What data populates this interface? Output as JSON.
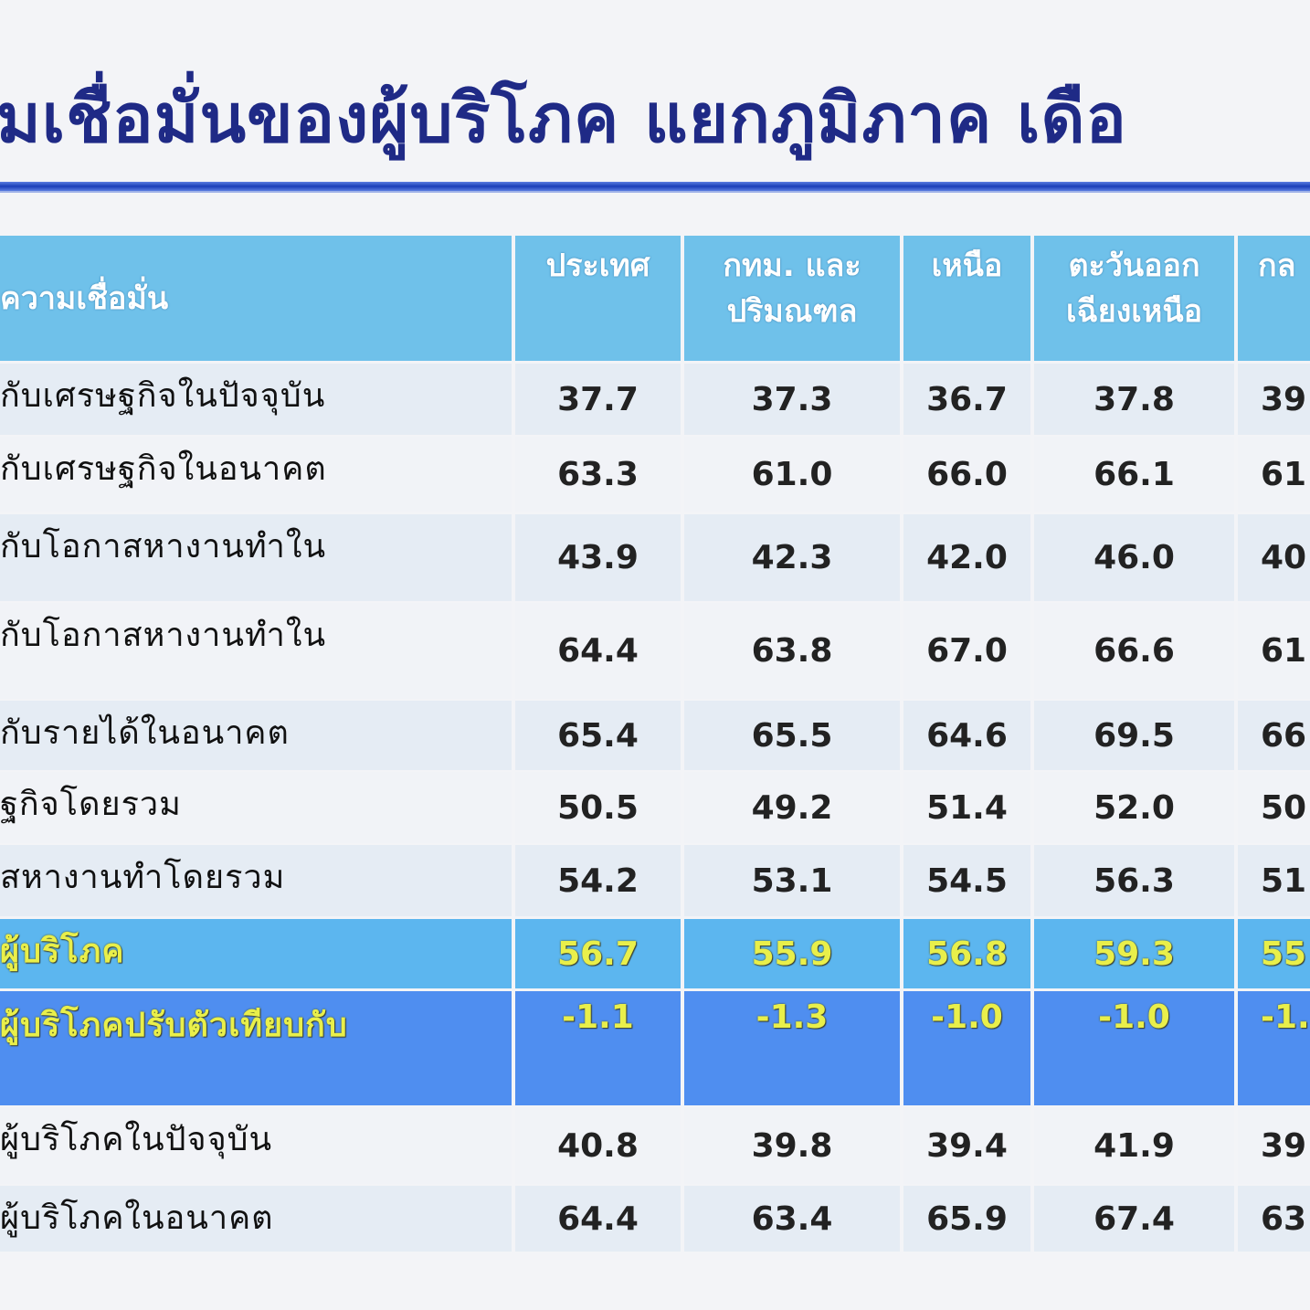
{
  "title": "มเชื่อมั่นของผู้บริโภค แยกภูมิภาค เดือ",
  "colors": {
    "title": "#1f2a86",
    "header_bg": "#6fc1ea",
    "highlight_row_bg": "#5cb6ef",
    "change_row_bg": "#4f8ef0",
    "highlight_text": "#e9ef4a"
  },
  "table": {
    "headers": [
      "ความเชื่อมั่น",
      "ประเทศ",
      "กทม. และ\nปริมณฑล",
      "เหนือ",
      "ตะวันออก\nเฉียงเหนือ",
      "กล"
    ],
    "rows": [
      {
        "label": "กับเศรษฐกิจในปัจจุบัน",
        "values": [
          "37.7",
          "37.3",
          "36.7",
          "37.8",
          "39"
        ]
      },
      {
        "label": "กับเศรษฐกิจในอนาคต",
        "values": [
          "63.3",
          "61.0",
          "66.0",
          "66.1",
          "61"
        ]
      },
      {
        "label": "กับโอกาสหางานทำใน",
        "values": [
          "43.9",
          "42.3",
          "42.0",
          "46.0",
          "40"
        ]
      },
      {
        "label": "กับโอกาสหางานทำใน",
        "values": [
          "64.4",
          "63.8",
          "67.0",
          "66.6",
          "61"
        ]
      },
      {
        "label": "กับรายได้ในอนาคต",
        "values": [
          "65.4",
          "65.5",
          "64.6",
          "69.5",
          "66"
        ]
      },
      {
        "label": "ฐกิจโดยรวม",
        "values": [
          "50.5",
          "49.2",
          "51.4",
          "52.0",
          "50"
        ]
      },
      {
        "label": "สหางานทำโดยรวม",
        "values": [
          "54.2",
          "53.1",
          "54.5",
          "56.3",
          "51"
        ]
      },
      {
        "label": "ผู้บริโภค",
        "values": [
          "56.7",
          "55.9",
          "56.8",
          "59.3",
          "55"
        ]
      },
      {
        "label": "ผู้บริโภคปรับตัวเทียบกับ",
        "values": [
          "-1.1",
          "-1.3",
          "-1.0",
          "-1.0",
          "-1."
        ]
      },
      {
        "label": "ผู้บริโภคในปัจจุบัน",
        "values": [
          "40.8",
          "39.8",
          "39.4",
          "41.9",
          "39"
        ]
      },
      {
        "label": "ผู้บริโภคในอนาคต",
        "values": [
          "64.4",
          "63.4",
          "65.9",
          "67.4",
          "63"
        ]
      }
    ]
  }
}
